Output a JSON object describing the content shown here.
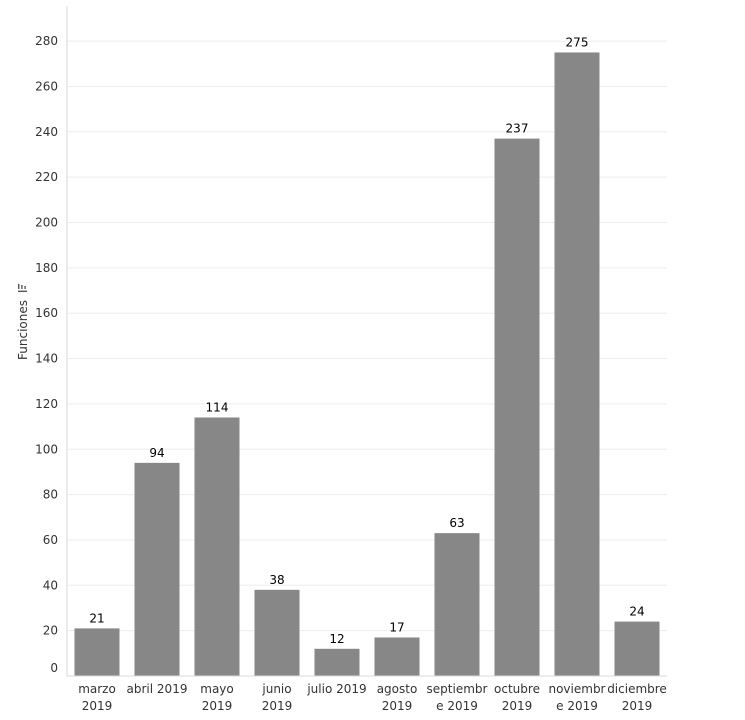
{
  "chart_data": {
    "type": "bar",
    "categories": [
      [
        "marzo",
        "2019"
      ],
      [
        "abril 2019"
      ],
      [
        "mayo",
        "2019"
      ],
      [
        "junio",
        "2019"
      ],
      [
        "julio 2019"
      ],
      [
        "agosto",
        "2019"
      ],
      [
        "septiembr",
        "e 2019"
      ],
      [
        "octubre",
        "2019"
      ],
      [
        "noviembr",
        "e 2019"
      ],
      [
        "diciembre",
        "2019"
      ]
    ],
    "values": [
      21,
      94,
      114,
      38,
      12,
      17,
      63,
      237,
      275,
      24
    ],
    "data_labels": [
      "21",
      "94",
      "114",
      "38",
      "12",
      "17",
      "63",
      "237",
      "275",
      "24"
    ],
    "ylabel": "Funciones",
    "ylim": [
      0,
      280
    ],
    "yticks": [
      0,
      20,
      40,
      60,
      80,
      100,
      120,
      140,
      160,
      180,
      200,
      220,
      240,
      260,
      280
    ],
    "grid": true,
    "bar_color": "#878787",
    "gridline_color": "#eeeeee",
    "axis_line_color": "#d9d9d9",
    "text_color": "#333333",
    "value_label_color": "#000000",
    "ylabel_icon": "sort-icon"
  }
}
